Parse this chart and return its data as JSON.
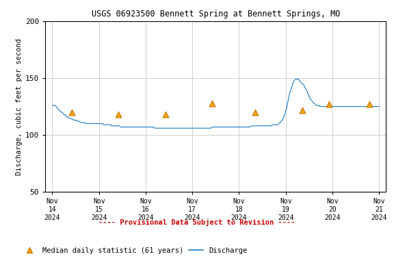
{
  "title": "USGS 06923500 Bennett Spring at Bennett Springs, MO",
  "ylabel": "Discharge, cubic feet per second",
  "ylim": [
    50,
    200
  ],
  "yticks": [
    50,
    100,
    150,
    200
  ],
  "background_color": "#ffffff",
  "grid_color": "#c8c8c8",
  "line_color": "#1a7abf",
  "triangle_facecolor": "#f5a31a",
  "triangle_edgecolor": "#c87800",
  "provisional_text": "---- Provisional Data Subject to Revision ----",
  "provisional_color": "#cc0000",
  "legend_triangle_label": "Median daily statistic (61 years)",
  "legend_line_label": "Discharge",
  "discharge_x": [
    0.0,
    0.02,
    0.04,
    0.06,
    0.08,
    0.1,
    0.12,
    0.14,
    0.17,
    0.19,
    0.21,
    0.23,
    0.25,
    0.27,
    0.29,
    0.31,
    0.33,
    0.35,
    0.38,
    0.4,
    0.42,
    0.44,
    0.46,
    0.48,
    0.5,
    0.52,
    0.54,
    0.56,
    0.58,
    0.6,
    0.63,
    0.65,
    0.67,
    0.69,
    0.71,
    0.73,
    0.75,
    0.77,
    0.79,
    0.81,
    0.83,
    0.85,
    0.88,
    0.9,
    0.92,
    0.94,
    0.96,
    0.98,
    1.0,
    1.02,
    1.04,
    1.06,
    1.08,
    1.1,
    1.13,
    1.15,
    1.17,
    1.19,
    1.21,
    1.23,
    1.25,
    1.27,
    1.29,
    1.31,
    1.33,
    1.35,
    1.38,
    1.4,
    1.42,
    1.44,
    1.46,
    1.48,
    1.5,
    1.52,
    1.54,
    1.56,
    1.58,
    1.6,
    1.63,
    1.65,
    1.67,
    1.69,
    1.71,
    1.73,
    1.75,
    1.77,
    1.79,
    1.81,
    1.83,
    1.85,
    1.88,
    1.9,
    1.92,
    1.94,
    1.96,
    1.98,
    2.0,
    2.02,
    2.04,
    2.06,
    2.08,
    2.1,
    2.13,
    2.15,
    2.17,
    2.19,
    2.21,
    2.23,
    2.25,
    2.27,
    2.29,
    2.31,
    2.33,
    2.35,
    2.38,
    2.4,
    2.42,
    2.44,
    2.46,
    2.48,
    2.5,
    2.52,
    2.54,
    2.56,
    2.58,
    2.6,
    2.63,
    2.65,
    2.67,
    2.69,
    2.71,
    2.73,
    2.75,
    2.77,
    2.79,
    2.81,
    2.83,
    2.85,
    2.88,
    2.9,
    2.92,
    2.94,
    2.96,
    2.98,
    3.0,
    3.02,
    3.04,
    3.06,
    3.08,
    3.1,
    3.13,
    3.15,
    3.17,
    3.19,
    3.21,
    3.23,
    3.25,
    3.27,
    3.29,
    3.31,
    3.33,
    3.35,
    3.38,
    3.4,
    3.42,
    3.44,
    3.46,
    3.48,
    3.5,
    3.52,
    3.54,
    3.56,
    3.58,
    3.6,
    3.63,
    3.65,
    3.67,
    3.69,
    3.71,
    3.73,
    3.75,
    3.77,
    3.79,
    3.81,
    3.83,
    3.85,
    3.88,
    3.9,
    3.92,
    3.94,
    3.96,
    3.98,
    4.0,
    4.02,
    4.04,
    4.06,
    4.08,
    4.1,
    4.13,
    4.15,
    4.17,
    4.19,
    4.21,
    4.23,
    4.25,
    4.27,
    4.29,
    4.31,
    4.33,
    4.35,
    4.38,
    4.4,
    4.42,
    4.44,
    4.46,
    4.48,
    4.5,
    4.52,
    4.54,
    4.56,
    4.58,
    4.6,
    4.63,
    4.65,
    4.67,
    4.69,
    4.71,
    4.73,
    4.75,
    4.77,
    4.79,
    4.81,
    4.83,
    4.85,
    4.88,
    4.9,
    4.92,
    4.94,
    4.96,
    4.98,
    5.0,
    5.02,
    5.04,
    5.06,
    5.08,
    5.1,
    5.13,
    5.15,
    5.17,
    5.19,
    5.21,
    5.23,
    5.25,
    5.27,
    5.29,
    5.31,
    5.33,
    5.35,
    5.38,
    5.4,
    5.42,
    5.44,
    5.46,
    5.48,
    5.5,
    5.52,
    5.54,
    5.56,
    5.58,
    5.6,
    5.63,
    5.65,
    5.67,
    5.69,
    5.71,
    5.73,
    5.75,
    5.77,
    5.79,
    5.81,
    5.83,
    5.85,
    5.88,
    5.9,
    5.92,
    5.94,
    5.96,
    5.98,
    6.0,
    6.02,
    6.04,
    6.06,
    6.08,
    6.1,
    6.13,
    6.15,
    6.17,
    6.19,
    6.21,
    6.23,
    6.25,
    6.27,
    6.29,
    6.31,
    6.33,
    6.35,
    6.38,
    6.4,
    6.42,
    6.44,
    6.46,
    6.48,
    6.5,
    6.52,
    6.54,
    6.56,
    6.58,
    6.6,
    6.63,
    6.65,
    6.67,
    6.69,
    6.71,
    6.73,
    6.75,
    6.77,
    6.79,
    6.81,
    6.83,
    6.85,
    6.88,
    6.9,
    6.92,
    6.94,
    6.96,
    6.98,
    7.0
  ],
  "discharge_y": [
    126,
    126,
    126,
    126,
    125,
    124,
    123,
    122,
    121,
    120,
    120,
    119,
    118,
    118,
    117,
    116,
    116,
    115,
    115,
    114,
    114,
    114,
    113,
    113,
    113,
    113,
    112,
    112,
    112,
    111,
    111,
    111,
    111,
    111,
    110,
    110,
    110,
    110,
    110,
    110,
    110,
    110,
    110,
    110,
    110,
    110,
    110,
    110,
    110,
    110,
    110,
    110,
    110,
    109,
    109,
    109,
    109,
    109,
    109,
    109,
    109,
    108,
    108,
    108,
    108,
    108,
    108,
    108,
    108,
    108,
    107,
    107,
    107,
    107,
    107,
    107,
    107,
    107,
    107,
    107,
    107,
    107,
    107,
    107,
    107,
    107,
    107,
    107,
    107,
    107,
    107,
    107,
    107,
    107,
    107,
    107,
    107,
    107,
    107,
    107,
    107,
    107,
    107,
    107,
    107,
    106,
    106,
    106,
    106,
    106,
    106,
    106,
    106,
    106,
    106,
    106,
    106,
    106,
    106,
    106,
    106,
    106,
    106,
    106,
    106,
    106,
    106,
    106,
    106,
    106,
    106,
    106,
    106,
    106,
    106,
    106,
    106,
    106,
    106,
    106,
    106,
    106,
    106,
    106,
    106,
    106,
    106,
    106,
    106,
    106,
    106,
    106,
    106,
    106,
    106,
    106,
    106,
    106,
    106,
    106,
    106,
    106,
    106,
    106,
    107,
    107,
    107,
    107,
    107,
    107,
    107,
    107,
    107,
    107,
    107,
    107,
    107,
    107,
    107,
    107,
    107,
    107,
    107,
    107,
    107,
    107,
    107,
    107,
    107,
    107,
    107,
    107,
    107,
    107,
    107,
    107,
    107,
    107,
    107,
    107,
    107,
    107,
    107,
    107,
    108,
    108,
    108,
    108,
    108,
    108,
    108,
    108,
    108,
    108,
    108,
    108,
    108,
    108,
    108,
    108,
    108,
    108,
    108,
    108,
    108,
    108,
    109,
    109,
    109,
    109,
    109,
    109,
    109,
    110,
    111,
    112,
    113,
    114,
    116,
    118,
    121,
    124,
    128,
    132,
    136,
    139,
    142,
    145,
    147,
    148,
    149,
    149,
    149,
    149,
    148,
    147,
    146,
    145,
    144,
    143,
    141,
    140,
    138,
    136,
    134,
    132,
    131,
    130,
    129,
    128,
    127,
    126,
    126,
    126,
    126,
    125,
    125,
    125,
    125,
    125,
    125,
    125,
    125,
    125,
    125,
    125,
    125,
    125,
    125,
    125,
    125,
    125,
    125,
    125,
    125,
    125,
    125,
    125,
    125,
    125,
    125,
    125,
    125,
    125,
    125,
    125,
    125,
    125,
    125,
    125,
    125,
    125,
    125,
    125,
    125,
    125,
    125,
    125,
    125,
    125,
    125,
    125,
    125,
    125,
    125,
    125,
    125,
    125,
    125,
    125,
    125,
    125,
    125,
    125,
    125,
    125,
    125
  ],
  "median_x": [
    0.42,
    1.42,
    2.42,
    3.42,
    4.35,
    5.35,
    5.92,
    6.79
  ],
  "median_y": [
    120,
    118,
    118,
    128,
    120,
    122,
    127,
    127
  ],
  "xtick_positions": [
    0,
    1,
    2,
    3,
    4,
    5,
    6,
    7
  ],
  "xtick_labels": [
    "Nov\n14\n2024",
    "Nov\n15\n2024",
    "Nov\n16\n2024",
    "Nov\n17\n2024",
    "Nov\n18\n2024",
    "Nov\n19\n2024",
    "Nov\n20\n2024",
    "Nov\n21\n2024"
  ],
  "xlim": [
    -0.15,
    7.15
  ]
}
